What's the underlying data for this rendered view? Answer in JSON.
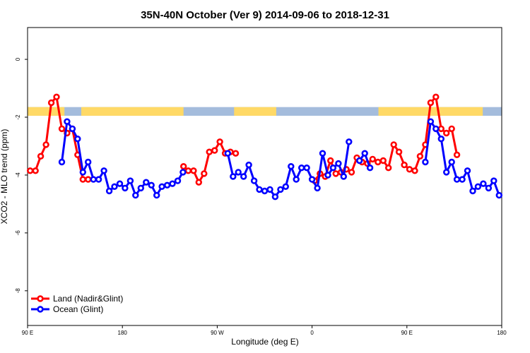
{
  "chart_data": {
    "type": "line",
    "title": "35N-40N October (Ver 9)   2014-09-06 to 2018-12-31",
    "xlabel": "Longitude (deg E)",
    "ylabel": "XCO2 - MLO trend (ppm)",
    "xlim": [
      90,
      540
    ],
    "ylim": [
      -9.2,
      1.1
    ],
    "x_ticks": [
      {
        "value": 90,
        "label": "90 E"
      },
      {
        "value": 180,
        "label": "180"
      },
      {
        "value": 270,
        "label": "90 W"
      },
      {
        "value": 360,
        "label": "0"
      },
      {
        "value": 450,
        "label": "90 E"
      },
      {
        "value": 540,
        "label": "180"
      }
    ],
    "y_ticks": [
      {
        "value": 0,
        "label": "0"
      },
      {
        "value": -2,
        "label": "-2"
      },
      {
        "value": -4,
        "label": "-4"
      },
      {
        "value": -6,
        "label": "-6"
      },
      {
        "value": -8,
        "label": "-8"
      }
    ],
    "land_sea_strip": {
      "y_range": [
        -1.95,
        -1.65
      ],
      "land_color": "#ffd966",
      "ocean_color": "#a4bcdc",
      "land_segments": [
        [
          90,
          125
        ],
        [
          141,
          238
        ],
        [
          286,
          326
        ],
        [
          423,
          522
        ]
      ]
    },
    "legend": {
      "position": "bottom-left"
    },
    "series": [
      {
        "name": "Land (Nadir&Glint)",
        "color": "#ff0000",
        "segments": [
          {
            "x": [
              92.5,
              97.5,
              102.5,
              107.5,
              112.5,
              117.5,
              122.5,
              127.5,
              132.5,
              137.5,
              142.5,
              147.5
            ],
            "y": [
              -3.85,
              -3.85,
              -3.35,
              -2.95,
              -1.5,
              -1.3,
              -2.4,
              -2.55,
              -2.4,
              -3.3,
              -4.15,
              -4.15
            ]
          },
          {
            "x": [
              238,
              242.5,
              247.5,
              252.5,
              257.5,
              262.5,
              267.5,
              272.5,
              277.5,
              282.5,
              287.5
            ],
            "y": [
              -3.7,
              -3.85,
              -3.85,
              -4.25,
              -3.95,
              -3.2,
              -3.15,
              -2.85,
              -3.25,
              -3.2,
              -3.25
            ]
          },
          {
            "x": [
              362.5,
              367.5,
              372.5,
              377.5,
              382.5,
              387.5,
              392.5,
              397.5,
              402.5,
              407.5,
              412.5,
              417.5,
              422.5,
              427.5,
              432.5,
              437.5,
              442.5,
              447.5,
              452.5,
              457.5,
              462.5,
              467.5,
              472.5,
              477.5,
              482.5,
              487.5,
              492.5,
              497.5
            ],
            "y": [
              -4.2,
              -3.95,
              -4.05,
              -3.5,
              -3.95,
              -3.9,
              -3.8,
              -3.9,
              -3.4,
              -3.55,
              -3.6,
              -3.45,
              -3.55,
              -3.5,
              -3.75,
              -2.95,
              -3.2,
              -3.65,
              -3.8,
              -3.85,
              -3.35,
              -2.95,
              -1.5,
              -1.3,
              -2.4,
              -2.55,
              -2.4,
              -3.3
            ]
          }
        ]
      },
      {
        "name": "Ocean (Glint)",
        "color": "#0000ff",
        "segments": [
          {
            "x": [
              122.5,
              127.5,
              132.5,
              137.5,
              142.5,
              147.5,
              152.5,
              157.5,
              162.5,
              167.5,
              172.5,
              177.5,
              182.5,
              187.5,
              192.5,
              197.5,
              202.5,
              207.5,
              212.5,
              217.5,
              222.5,
              227.5,
              232.5,
              237.5
            ],
            "y": [
              -3.55,
              -2.15,
              -2.4,
              -2.75,
              -3.9,
              -3.55,
              -4.15,
              -4.15,
              -3.85,
              -4.55,
              -4.4,
              -4.3,
              -4.45,
              -4.2,
              -4.7,
              -4.45,
              -4.25,
              -4.35,
              -4.7,
              -4.4,
              -4.35,
              -4.3,
              -4.2,
              -3.9
            ]
          },
          {
            "x": [
              280,
              285,
              290,
              295,
              300,
              305,
              310,
              315,
              320,
              325,
              330,
              335,
              340,
              345,
              350,
              355,
              360,
              365,
              370,
              375,
              380,
              385,
              390,
              395,
              400,
              405,
              410,
              415,
              420
            ],
            "y": [
              -3.25,
              -4.05,
              -3.9,
              -4.05,
              -3.65,
              -4.2,
              -4.5,
              -4.55,
              -4.5,
              -4.75,
              -4.5,
              -4.4,
              -3.7,
              -4.15,
              -3.75,
              -3.75,
              -4.15,
              -4.45,
              -3.25,
              -4.0,
              -3.75,
              -3.6,
              -4.05,
              -2.85,
              null,
              -3.5,
              -3.25,
              -3.75,
              null
            ]
          },
          {
            "x": [
              467.5,
              472.5,
              477.5,
              482.5,
              487.5,
              492.5,
              497.5,
              502.5,
              507.5,
              512.5,
              517.5,
              522.5,
              527.5,
              532.5,
              537.5
            ],
            "y": [
              -3.55,
              -2.15,
              -2.4,
              -2.75,
              -3.9,
              -3.55,
              -4.15,
              -4.15,
              -3.85,
              -4.55,
              -4.4,
              -4.3,
              -4.45,
              -4.2,
              -4.7
            ]
          }
        ]
      }
    ]
  }
}
